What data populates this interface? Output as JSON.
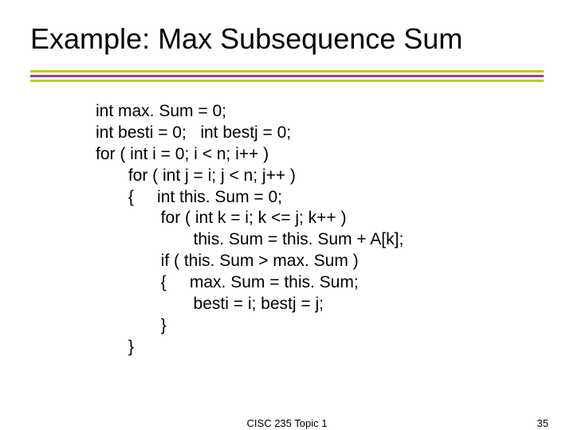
{
  "title": "Example: Max Subsequence Sum",
  "rule_colors": {
    "top": "#b6d218",
    "mid": "#9a3c9a",
    "bot": "#b6d218"
  },
  "code": {
    "l1": "int max. Sum = 0;",
    "l2": "int besti = 0;   int bestj = 0;",
    "l3": "for ( int i = 0; i < n; i++ )",
    "l4": "       for ( int j = i; j < n; j++ )",
    "l5": "       {     int this. Sum = 0;",
    "l6": "              for ( int k = i; k <= j; k++ )",
    "l7": "                     this. Sum = this. Sum + A[k];",
    "l8": "              if ( this. Sum > max. Sum )",
    "l9": "              {     max. Sum = this. Sum;",
    "l10": "                     besti = i; bestj = j;",
    "l11": "              }",
    "l12": "       }"
  },
  "footer": {
    "center": "CISC 235 Topic 1",
    "page": "35"
  },
  "typography": {
    "title_fontsize": 36,
    "code_fontsize": 21,
    "footer_fontsize": 13
  },
  "background_color": "#ffffff"
}
